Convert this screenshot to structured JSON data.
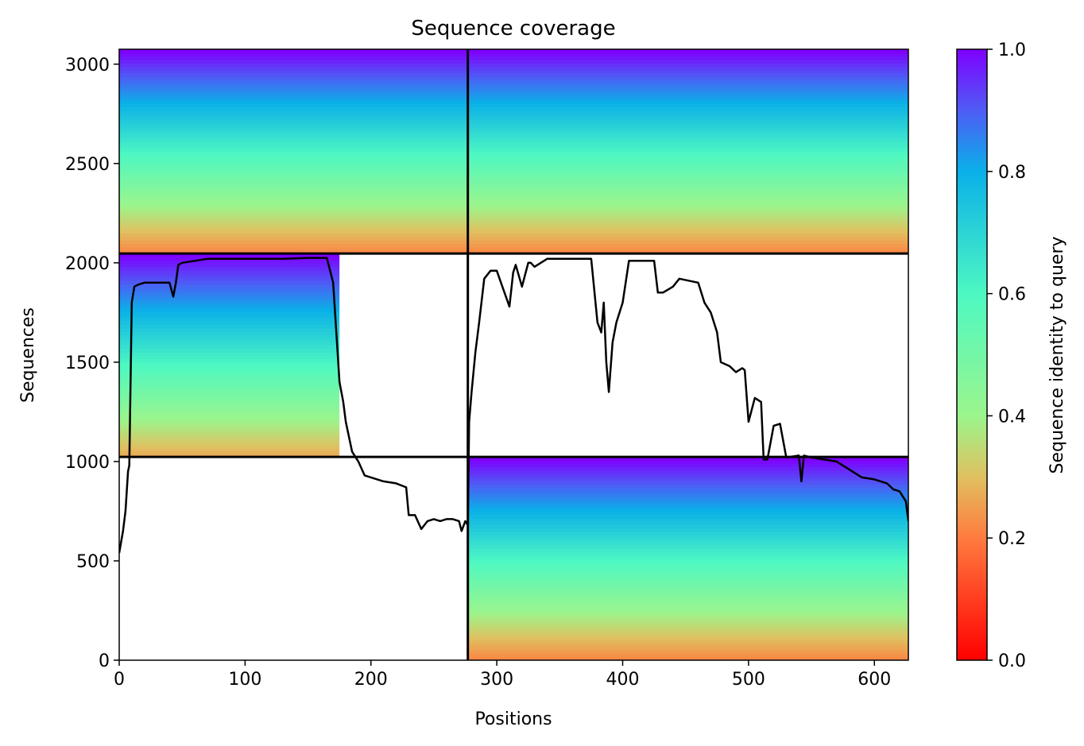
{
  "chart_data": {
    "type": "heatmap",
    "title": "Sequence coverage",
    "xlabel": "Positions",
    "ylabel": "Sequences",
    "xlim": [
      0,
      627
    ],
    "ylim": [
      0,
      3075
    ],
    "xticks": [
      0,
      100,
      200,
      300,
      400,
      500,
      600
    ],
    "yticks": [
      0,
      500,
      1000,
      1500,
      2000,
      2500,
      3000
    ],
    "colorbar": {
      "label": "Sequence identity to query",
      "range": [
        0,
        1
      ],
      "ticks": [
        0.0,
        0.2,
        0.4,
        0.6,
        0.8,
        1.0
      ],
      "tick_labels": [
        "0.0",
        "0.2",
        "0.4",
        "0.6",
        "0.8",
        "1.0"
      ],
      "colormap": "rainbow_r"
    },
    "divider_lines": {
      "vertical_x": 277,
      "horizontal_y": [
        1023,
        2047
      ]
    },
    "msa_blocks": [
      {
        "x": [
          0,
          277
        ],
        "y": [
          2047,
          3075
        ],
        "coverage_end": 277,
        "identity_low": 0.22,
        "identity_high": 1.0
      },
      {
        "x": [
          277,
          627
        ],
        "y": [
          2047,
          3075
        ],
        "coverage_end": 627,
        "identity_low": 0.22,
        "identity_high": 1.0
      },
      {
        "x": [
          0,
          277
        ],
        "y": [
          1023,
          2047
        ],
        "coverage_end": 175,
        "identity_low": 0.27,
        "identity_high": 1.0
      },
      {
        "x": [
          277,
          627
        ],
        "y": [
          0,
          1023
        ],
        "coverage_end": 627,
        "identity_low": 0.22,
        "identity_high": 1.0
      }
    ],
    "coverage_line": {
      "name": "",
      "x": [
        0,
        3,
        5,
        7,
        8,
        10,
        12,
        15,
        20,
        30,
        40,
        43,
        45,
        47,
        50,
        60,
        70,
        100,
        130,
        150,
        165,
        170,
        173,
        175,
        178,
        180,
        185,
        190,
        195,
        200,
        210,
        220,
        228,
        230,
        235,
        240,
        245,
        250,
        255,
        260,
        265,
        270,
        272,
        275,
        277,
        278,
        280,
        283,
        286,
        290,
        295,
        300,
        310,
        313,
        315,
        320,
        325,
        327,
        330,
        340,
        360,
        375,
        380,
        383,
        385,
        387,
        389,
        392,
        395,
        400,
        405,
        410,
        415,
        425,
        428,
        432,
        440,
        445,
        460,
        465,
        470,
        475,
        478,
        485,
        490,
        495,
        497,
        500,
        505,
        510,
        512,
        515,
        520,
        525,
        530,
        540,
        542,
        544,
        550,
        560,
        570,
        580,
        590,
        600,
        610,
        615,
        620,
        625,
        627
      ],
      "values": [
        540,
        650,
        750,
        950,
        980,
        1800,
        1880,
        1890,
        1900,
        1900,
        1900,
        1830,
        1900,
        1990,
        2000,
        2010,
        2020,
        2020,
        2020,
        2025,
        2025,
        1900,
        1600,
        1400,
        1300,
        1200,
        1050,
        1000,
        930,
        920,
        900,
        890,
        870,
        730,
        730,
        660,
        700,
        710,
        700,
        710,
        710,
        700,
        650,
        700,
        680,
        1200,
        1350,
        1550,
        1700,
        1920,
        1960,
        1960,
        1780,
        1950,
        1990,
        1880,
        2000,
        2000,
        1980,
        2020,
        2020,
        2020,
        1700,
        1650,
        1800,
        1500,
        1350,
        1600,
        1700,
        1800,
        2010,
        2010,
        2010,
        2010,
        1850,
        1850,
        1880,
        1920,
        1900,
        1800,
        1750,
        1650,
        1500,
        1480,
        1450,
        1470,
        1460,
        1200,
        1320,
        1300,
        1010,
        1010,
        1180,
        1190,
        1020,
        1030,
        900,
        1030,
        1020,
        1010,
        1000,
        960,
        920,
        910,
        890,
        860,
        850,
        800,
        700
      ]
    }
  }
}
